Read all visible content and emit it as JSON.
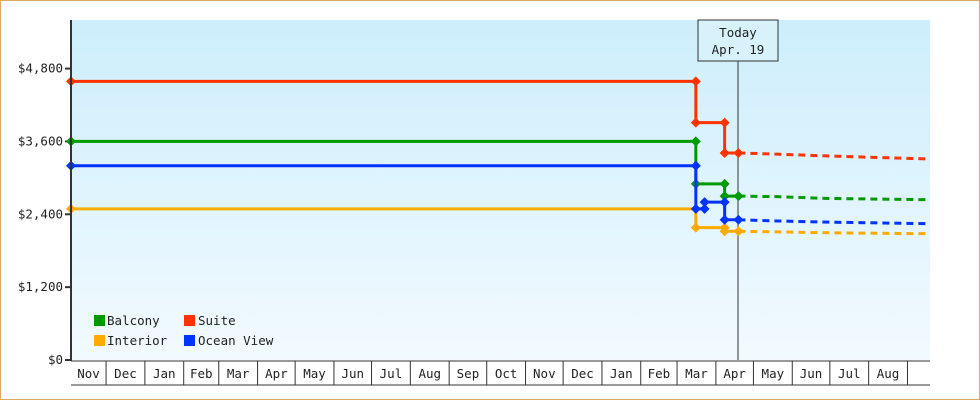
{
  "chart_data": {
    "type": "line",
    "title": "",
    "xlabel": "",
    "ylabel": "",
    "ylim": [
      0,
      5600
    ],
    "y_ticks": [
      "$0",
      "$1,200",
      "$2,400",
      "$3,600",
      "$4,800"
    ],
    "y_tick_values": [
      0,
      1200,
      2400,
      3600,
      4800
    ],
    "x_range": [
      "2018-11-03",
      "2020-09-19"
    ],
    "x_tick_labels": [
      "Nov",
      "Dec",
      "Jan",
      "Feb",
      "Mar",
      "Apr",
      "May",
      "Jun",
      "Jul",
      "Aug",
      "Sep",
      "Oct",
      "Nov",
      "Dec",
      "Jan",
      "Feb",
      "Mar",
      "Apr",
      "May",
      "Jun",
      "Jul",
      "Aug"
    ],
    "grid": false,
    "legend_position": "bottom-left",
    "today_marker": {
      "line1": "Today",
      "line2": "Apr. 19",
      "date": "2020-04-19"
    },
    "series": [
      {
        "name": "Balcony",
        "color": "#009900",
        "history": [
          [
            "2018-11-03",
            3600
          ],
          [
            "2020-03-16",
            3600
          ],
          [
            "2020-03-16",
            2900
          ],
          [
            "2020-04-08",
            2900
          ],
          [
            "2020-04-08",
            2700
          ],
          [
            "2020-04-19",
            2700
          ]
        ],
        "forecast": [
          [
            "2020-04-19",
            2700
          ],
          [
            "2020-05-20",
            2690
          ],
          [
            "2020-07-01",
            2660
          ],
          [
            "2020-09-19",
            2640
          ]
        ]
      },
      {
        "name": "Suite",
        "color": "#ff3300",
        "history": [
          [
            "2018-11-03",
            4590
          ],
          [
            "2020-03-16",
            4590
          ],
          [
            "2020-03-16",
            3910
          ],
          [
            "2020-04-08",
            3910
          ],
          [
            "2020-04-08",
            3410
          ],
          [
            "2020-04-19",
            3410
          ]
        ],
        "forecast": [
          [
            "2020-04-19",
            3410
          ],
          [
            "2020-05-20",
            3390
          ],
          [
            "2020-07-01",
            3360
          ],
          [
            "2020-09-19",
            3310
          ]
        ]
      },
      {
        "name": "Interior",
        "color": "#ffaa00",
        "history": [
          [
            "2018-11-03",
            2490
          ],
          [
            "2020-03-16",
            2490
          ],
          [
            "2020-03-16",
            2180
          ],
          [
            "2020-04-08",
            2180
          ],
          [
            "2020-04-08",
            2120
          ],
          [
            "2020-04-19",
            2120
          ]
        ],
        "forecast": [
          [
            "2020-04-19",
            2120
          ],
          [
            "2020-05-20",
            2110
          ],
          [
            "2020-07-01",
            2095
          ],
          [
            "2020-09-19",
            2080
          ]
        ]
      },
      {
        "name": "Ocean View",
        "color": "#0033ff",
        "history": [
          [
            "2018-11-03",
            3200
          ],
          [
            "2020-03-16",
            3200
          ],
          [
            "2020-03-16",
            2490
          ],
          [
            "2020-03-23",
            2490
          ],
          [
            "2020-03-23",
            2600
          ],
          [
            "2020-04-08",
            2600
          ],
          [
            "2020-04-08",
            2310
          ],
          [
            "2020-04-19",
            2310
          ]
        ],
        "forecast": [
          [
            "2020-04-19",
            2310
          ],
          [
            "2020-05-20",
            2290
          ],
          [
            "2020-07-01",
            2270
          ],
          [
            "2020-09-19",
            2245
          ]
        ]
      }
    ]
  }
}
